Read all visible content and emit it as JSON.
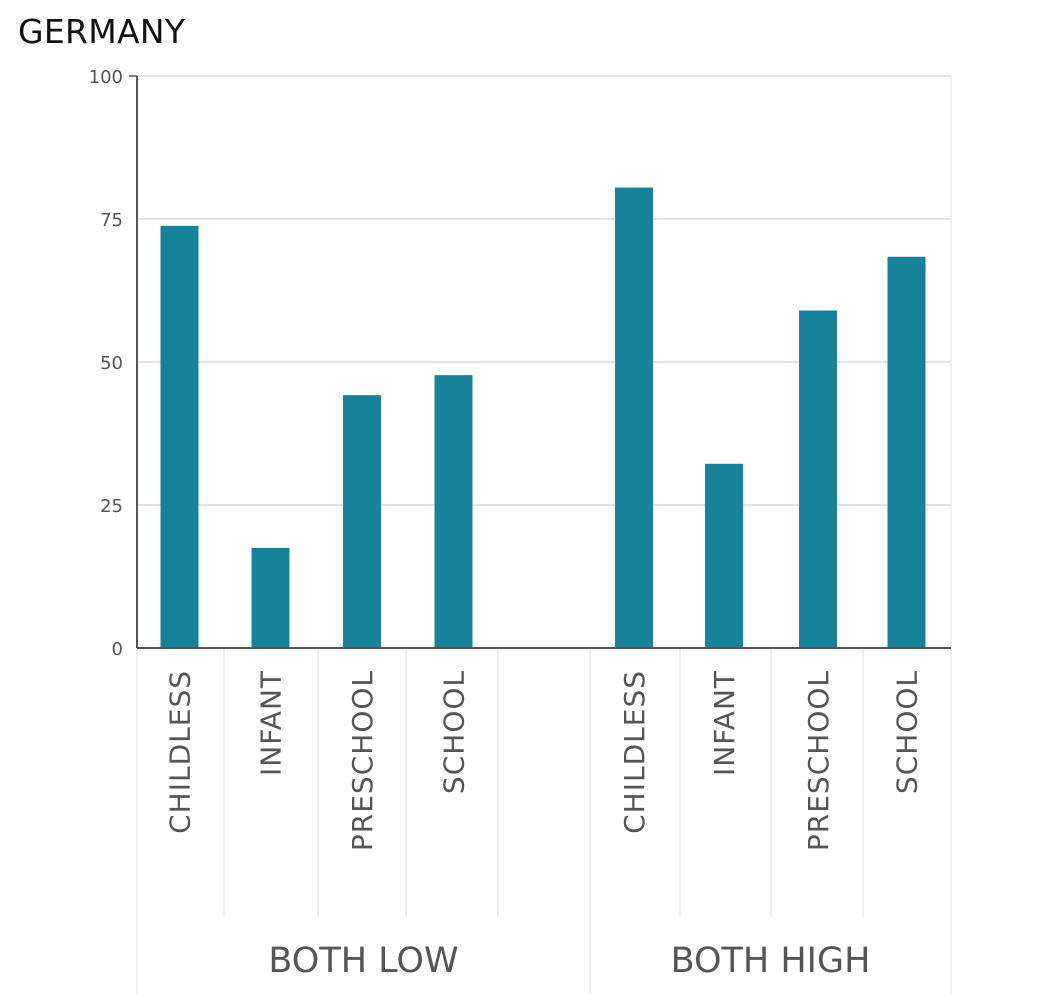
{
  "chart_data": {
    "type": "bar",
    "title": "GERMANY",
    "xlabel": "",
    "ylabel": "",
    "ylim": [
      0,
      100
    ],
    "yticks": [
      "0",
      "25",
      "50",
      "75",
      "100"
    ],
    "grid": true,
    "bar_color": "#17839a",
    "groups": [
      {
        "label": "BOTH LOW",
        "categories": [
          "CHILDLESS",
          "INFANT",
          "PRESCHOOL",
          "SCHOOL"
        ],
        "values": [
          73.8,
          17.5,
          44.2,
          47.7
        ]
      },
      {
        "label": "BOTH HIGH",
        "categories": [
          "CHILDLESS",
          "INFANT",
          "PRESCHOOL",
          "SCHOOL"
        ],
        "values": [
          80.5,
          32.2,
          59.0,
          68.4
        ]
      }
    ]
  }
}
